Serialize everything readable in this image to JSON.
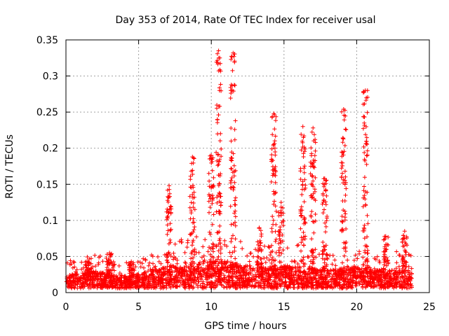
{
  "chart_data": {
    "type": "scatter",
    "title": "Day 353 of 2014, Rate Of TEC Index for receiver usal",
    "xlabel": "GPS time / hours",
    "ylabel": "ROTI / TECUs",
    "xlim": [
      0,
      25
    ],
    "ylim": [
      0,
      0.35
    ],
    "x_ticks": [
      0,
      5,
      10,
      15,
      20,
      25
    ],
    "x_tick_labels": [
      "0",
      "5",
      "10",
      "15",
      "20",
      "25"
    ],
    "y_ticks": [
      0,
      0.05,
      0.1,
      0.15,
      0.2,
      0.25,
      0.3,
      0.35
    ],
    "y_tick_labels": [
      "0",
      "0.05",
      "0.1",
      "0.15",
      "0.2",
      "0.25",
      "0.3",
      "0.35"
    ],
    "grid": true,
    "marker": "plus",
    "color": "#ff0000",
    "series": [
      {
        "name": "ROTI",
        "x_range": [
          0,
          23.8
        ],
        "baseline": [
          [
            0.0,
            0.018
          ],
          [
            1.0,
            0.022
          ],
          [
            2.0,
            0.024
          ],
          [
            3.0,
            0.02
          ],
          [
            4.0,
            0.018
          ],
          [
            5.0,
            0.02
          ],
          [
            6.0,
            0.026
          ],
          [
            7.0,
            0.03
          ],
          [
            8.0,
            0.034
          ],
          [
            9.0,
            0.036
          ],
          [
            10.0,
            0.038
          ],
          [
            11.0,
            0.038
          ],
          [
            12.0,
            0.034
          ],
          [
            13.0,
            0.03
          ],
          [
            14.0,
            0.03
          ],
          [
            15.0,
            0.032
          ],
          [
            16.0,
            0.03
          ],
          [
            17.0,
            0.028
          ],
          [
            18.0,
            0.026
          ],
          [
            19.0,
            0.028
          ],
          [
            20.0,
            0.03
          ],
          [
            21.0,
            0.026
          ],
          [
            22.0,
            0.024
          ],
          [
            23.0,
            0.026
          ],
          [
            23.8,
            0.024
          ]
        ],
        "peaks": [
          {
            "x": 1.5,
            "y": 0.043
          },
          {
            "x": 3.0,
            "y": 0.055
          },
          {
            "x": 4.5,
            "y": 0.043
          },
          {
            "x": 7.1,
            "y": 0.148
          },
          {
            "x": 8.7,
            "y": 0.188
          },
          {
            "x": 10.0,
            "y": 0.19
          },
          {
            "x": 10.5,
            "y": 0.335
          },
          {
            "x": 11.5,
            "y": 0.332
          },
          {
            "x": 13.3,
            "y": 0.09
          },
          {
            "x": 14.3,
            "y": 0.248
          },
          {
            "x": 14.8,
            "y": 0.125
          },
          {
            "x": 16.3,
            "y": 0.23
          },
          {
            "x": 17.0,
            "y": 0.228
          },
          {
            "x": 17.8,
            "y": 0.158
          },
          {
            "x": 19.1,
            "y": 0.254
          },
          {
            "x": 20.6,
            "y": 0.28
          },
          {
            "x": 22.0,
            "y": 0.078
          },
          {
            "x": 23.3,
            "y": 0.085
          }
        ]
      }
    ]
  }
}
